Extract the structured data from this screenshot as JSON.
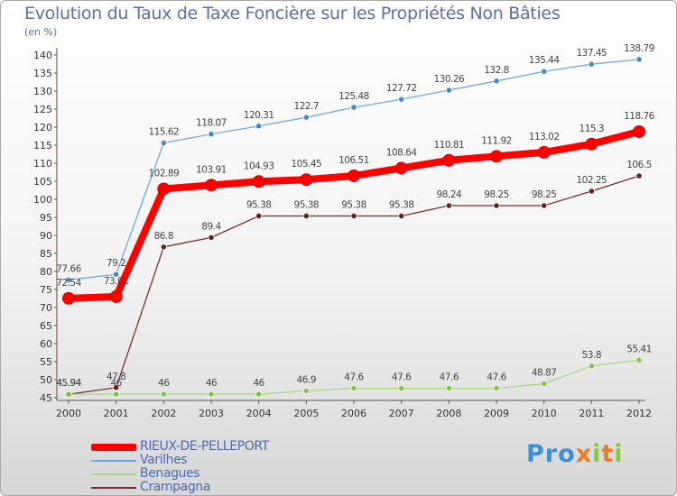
{
  "header": {
    "title": "Evolution du Taux de Taxe Foncière sur les Propriétés Non Bâties",
    "unit": "(en %)"
  },
  "logo": {
    "text": "Proxiti",
    "letters": [
      {
        "ch": "P",
        "color": "#3a8fd6"
      },
      {
        "ch": "r",
        "color": "#3a8fd6"
      },
      {
        "ch": "o",
        "color": "#3a8fd6"
      },
      {
        "ch": "x",
        "color": "#f07b1e"
      },
      {
        "ch": "i",
        "color": "#8cc63f"
      },
      {
        "ch": "t",
        "color": "#f07b1e"
      },
      {
        "ch": "i",
        "color": "#8cc63f"
      }
    ]
  },
  "chart_data": {
    "type": "line",
    "title": "Evolution du Taux de Taxe Foncière sur les Propriétés Non Bâties",
    "ylabel": "(en %)",
    "xlabel": "",
    "ylim": [
      45,
      140
    ],
    "ytick_step": 5,
    "grid": false,
    "legend": "bottom-left",
    "categories": [
      "2000",
      "2001",
      "2002",
      "2003",
      "2004",
      "2005",
      "2006",
      "2007",
      "2008",
      "2009",
      "2010",
      "2011",
      "2012"
    ],
    "series": [
      {
        "name": "RIEUX-DE-PELLEPORT",
        "color": "#ff0000",
        "emphasis": "thick",
        "values": [
          72.54,
          73.01,
          102.89,
          103.91,
          104.93,
          105.45,
          106.51,
          108.64,
          110.81,
          111.92,
          113.02,
          115.3,
          118.76
        ],
        "labels": [
          "72.54",
          "73.01",
          "102.89",
          "103.91",
          "104.93",
          "105.45",
          "106.51",
          "108.64",
          "110.81",
          "111.92",
          "113.02",
          "115.3",
          "118.76"
        ]
      },
      {
        "name": "Varilhes",
        "color": "#6fa8dc",
        "marker_color": "#3d85c6",
        "emphasis": "thin",
        "values": [
          77.66,
          79.2,
          115.62,
          118.07,
          120.31,
          122.7,
          125.48,
          127.72,
          130.26,
          132.8,
          135.44,
          137.45,
          138.79
        ],
        "labels": [
          "77.66",
          "79.2",
          "115.62",
          "118.07",
          "120.31",
          "122.7",
          "125.48",
          "127.72",
          "130.26",
          "132.8",
          "135.44",
          "137.45",
          "138.79"
        ]
      },
      {
        "name": "Benagues",
        "color": "#a5d97a",
        "marker_color": "#7dc242",
        "emphasis": "thin",
        "values": [
          45.94,
          46,
          46,
          46,
          46,
          46.9,
          47.6,
          47.6,
          47.6,
          47.6,
          48.87,
          53.8,
          55.41
        ],
        "labels": [
          "45.94",
          "46",
          "46",
          "46",
          "46",
          "46.9",
          "47.6",
          "47.6",
          "47.6",
          "47.6",
          "48.87",
          "53.8",
          "55.41"
        ]
      },
      {
        "name": "Crampagna",
        "color": "#7b2d2d",
        "marker_color": "#5c1a1a",
        "emphasis": "thin",
        "values": [
          45.94,
          47.8,
          86.8,
          89.4,
          95.38,
          95.38,
          95.38,
          95.38,
          98.24,
          98.25,
          98.25,
          102.25,
          106.5
        ],
        "labels": [
          "45.94",
          "47.8",
          "86.8",
          "89.4",
          "95.38",
          "95.38",
          "95.38",
          "95.38",
          "98.24",
          "98.25",
          "98.25",
          "102.25",
          "106.5"
        ]
      }
    ]
  }
}
